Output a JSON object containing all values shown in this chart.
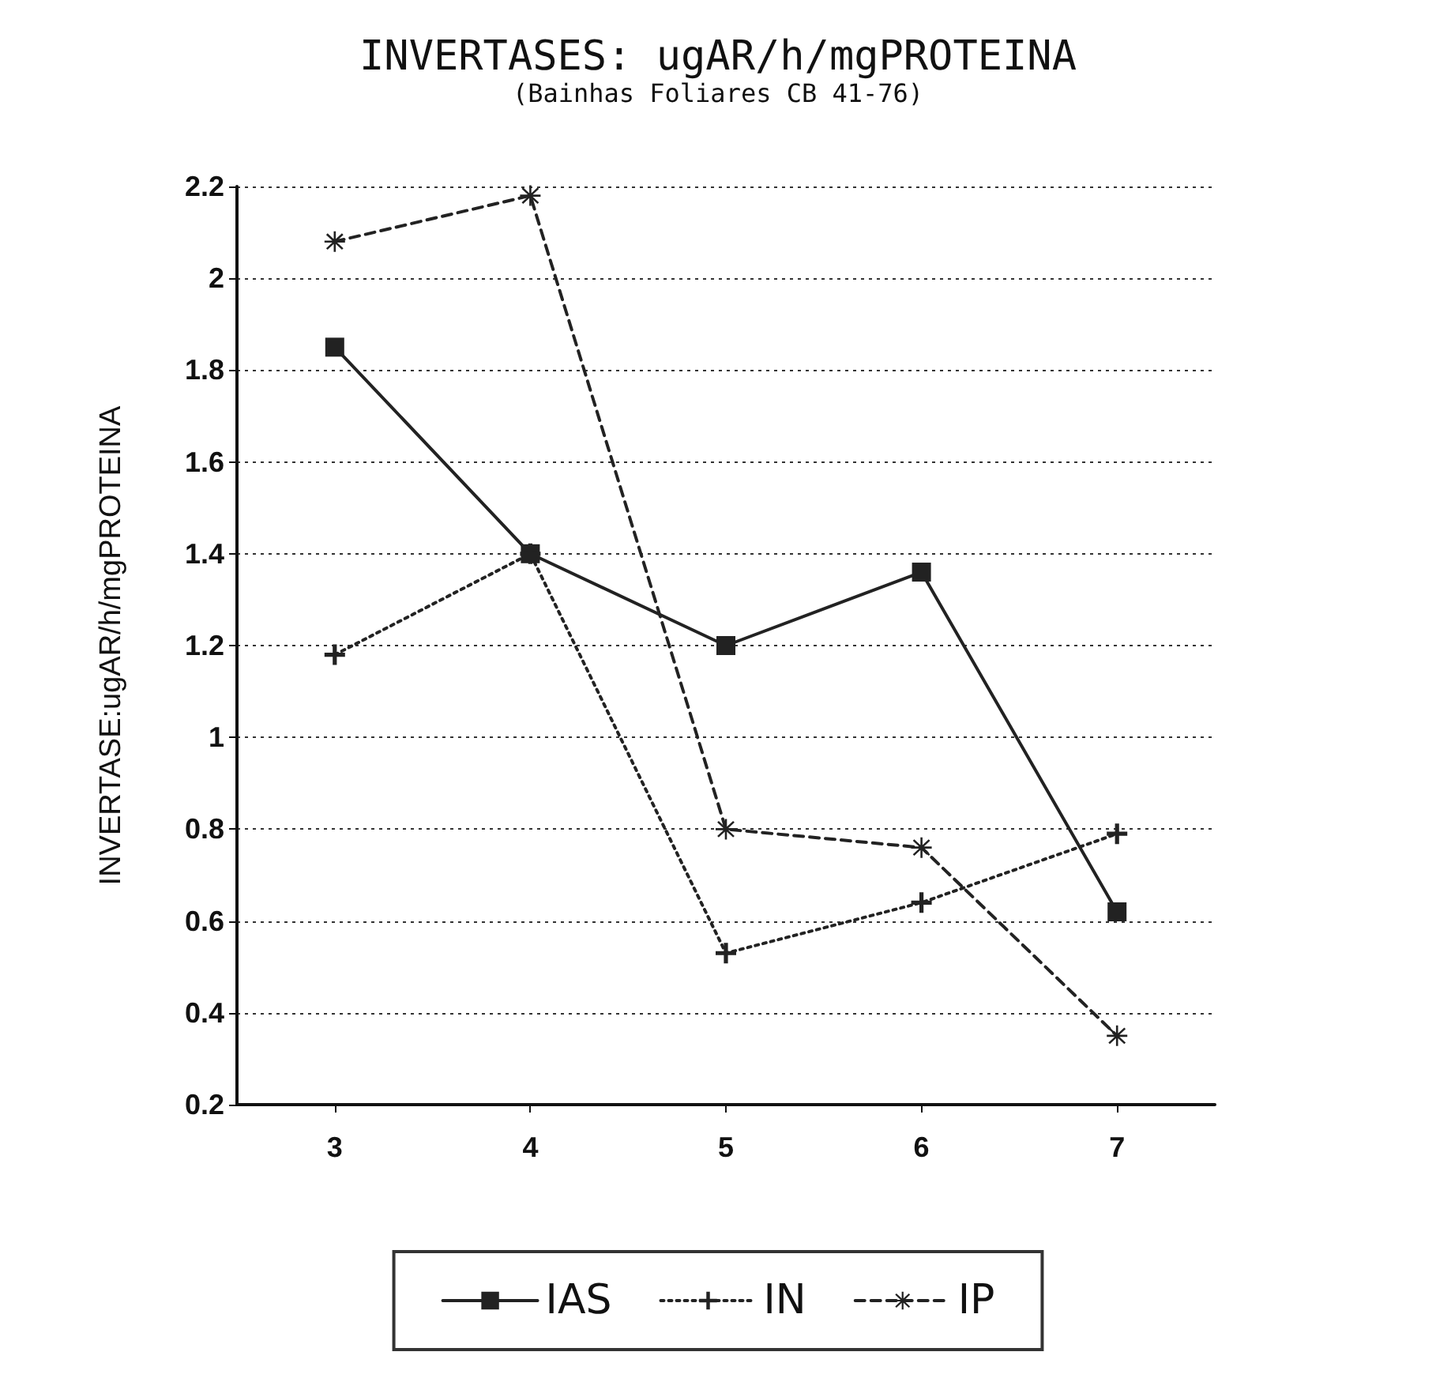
{
  "chart_data": {
    "type": "line",
    "title": "INVERTASES: ugAR/h/mgPROTEINA",
    "subtitle": "(Bainhas Foliares CB 41-76)",
    "ylabel": "INVERTASE:ugAR/h/mgPROTEINA",
    "categories": [
      "3",
      "4",
      "5",
      "6",
      "7"
    ],
    "series": [
      {
        "name": "IAS",
        "color": "#222222",
        "marker": "square",
        "line_style": "solid",
        "values": [
          1.85,
          1.4,
          1.2,
          1.36,
          0.62
        ]
      },
      {
        "name": "IN",
        "color": "#222222",
        "marker": "cross",
        "line_style": "dotted",
        "values": [
          1.18,
          1.4,
          0.53,
          0.64,
          0.79
        ]
      },
      {
        "name": "IP",
        "color": "#222222",
        "marker": "star",
        "line_style": "dashed",
        "values": [
          2.08,
          2.18,
          0.8,
          0.76,
          0.35
        ]
      }
    ],
    "ylim": [
      0.2,
      2.2
    ],
    "yticks": [
      0.2,
      0.4,
      0.6,
      0.8,
      1,
      1.2,
      1.4,
      1.6,
      1.8,
      2,
      2.2
    ],
    "grid": "y",
    "legend": "bottom"
  }
}
